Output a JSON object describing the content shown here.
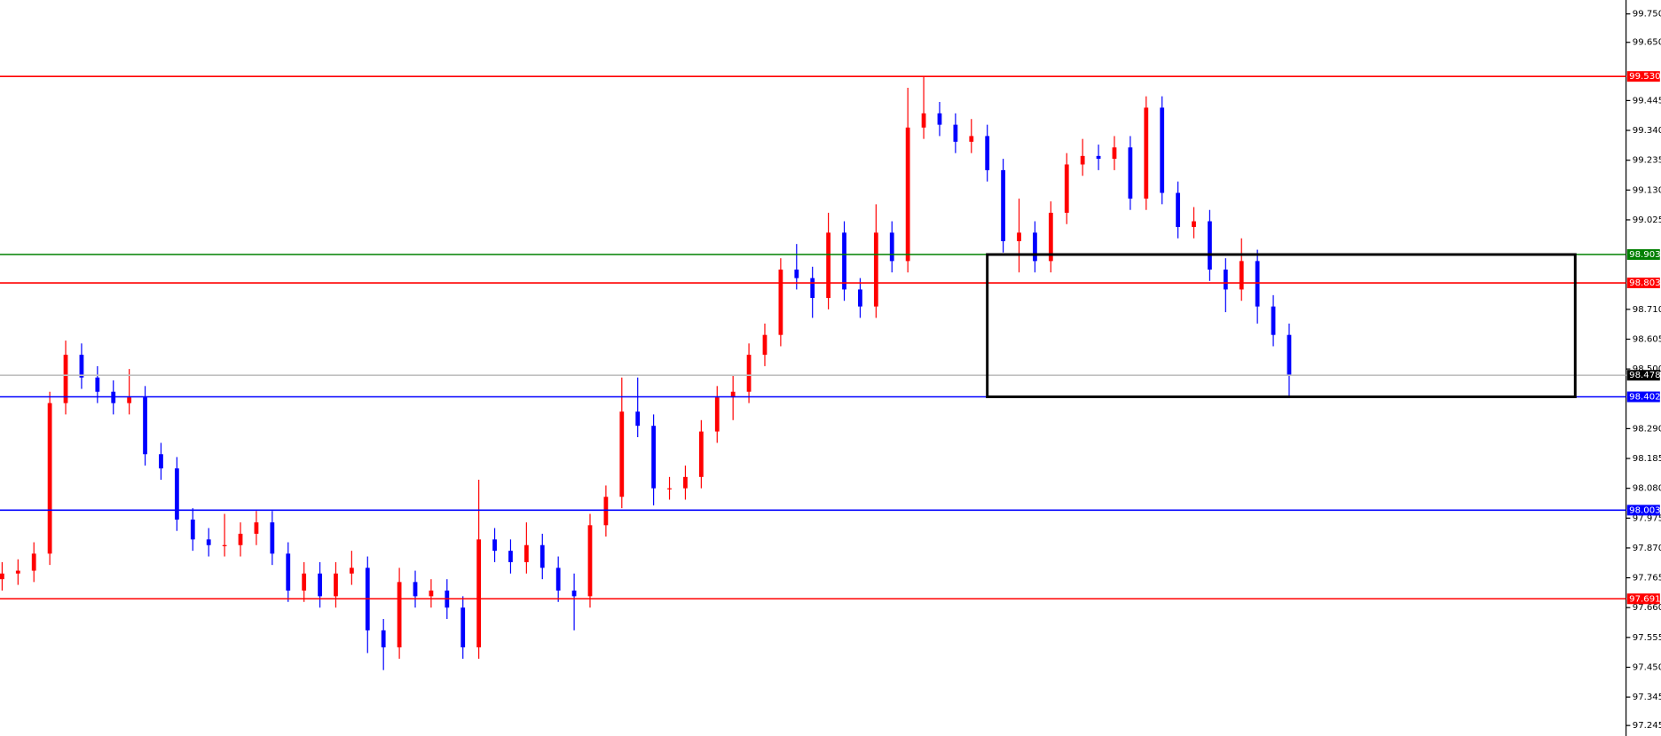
{
  "chart_data": {
    "type": "candlestick",
    "up_color": "#ff0000",
    "down_color": "#0000ff",
    "ylim": [
      97.208,
      99.799
    ],
    "yticks": [
      {
        "value": 99.75,
        "label": "99.750"
      },
      {
        "value": 99.65,
        "label": "99.650"
      },
      99.445,
      {
        "value": 99.34,
        "label": "99.340"
      },
      99.235,
      {
        "value": 99.13,
        "label": "99.130"
      },
      99.025,
      {
        "value": 98.71,
        "label": "98.710"
      },
      98.605,
      {
        "value": 98.5,
        "label": "98.500"
      },
      {
        "value": 98.29,
        "label": "98.290"
      },
      98.185,
      {
        "value": 98.08,
        "label": "98.080"
      },
      97.975,
      {
        "value": 97.87,
        "label": "97.870"
      },
      97.765,
      {
        "value": 97.66,
        "label": "97.660"
      },
      97.555,
      {
        "value": 97.45,
        "label": "97.450"
      },
      97.345,
      97.245
    ],
    "candles": [
      [
        97.76,
        97.82,
        97.72,
        97.78
      ],
      [
        97.78,
        97.83,
        97.74,
        97.79
      ],
      [
        97.79,
        97.89,
        97.75,
        97.85
      ],
      [
        97.85,
        98.42,
        97.81,
        98.38
      ],
      [
        98.38,
        98.6,
        98.34,
        98.55
      ],
      [
        98.55,
        98.59,
        98.43,
        98.47
      ],
      [
        98.47,
        98.51,
        98.38,
        98.42
      ],
      [
        98.42,
        98.46,
        98.34,
        98.38
      ],
      [
        98.38,
        98.5,
        98.34,
        98.4
      ],
      [
        98.4,
        98.44,
        98.16,
        98.2
      ],
      [
        98.2,
        98.24,
        98.11,
        98.15
      ],
      [
        98.15,
        98.19,
        97.93,
        97.97
      ],
      [
        97.97,
        98.01,
        97.86,
        97.9
      ],
      [
        97.9,
        97.94,
        97.84,
        97.88
      ],
      [
        97.88,
        97.99,
        97.84,
        97.88
      ],
      [
        97.88,
        97.96,
        97.84,
        97.92
      ],
      [
        97.92,
        98.0,
        97.88,
        97.96
      ],
      [
        97.96,
        98.0,
        97.81,
        97.85
      ],
      [
        97.85,
        97.89,
        97.68,
        97.72
      ],
      [
        97.72,
        97.82,
        97.68,
        97.78
      ],
      [
        97.78,
        97.82,
        97.66,
        97.7
      ],
      [
        97.7,
        97.82,
        97.66,
        97.78
      ],
      [
        97.78,
        97.86,
        97.74,
        97.8
      ],
      [
        97.8,
        97.84,
        97.5,
        97.58
      ],
      [
        97.58,
        97.62,
        97.44,
        97.52
      ],
      [
        97.52,
        97.8,
        97.48,
        97.75
      ],
      [
        97.75,
        97.79,
        97.66,
        97.7
      ],
      [
        97.7,
        97.76,
        97.66,
        97.72
      ],
      [
        97.72,
        97.76,
        97.62,
        97.66
      ],
      [
        97.66,
        97.7,
        97.48,
        97.52
      ],
      [
        97.52,
        98.11,
        97.48,
        97.9
      ],
      [
        97.9,
        97.94,
        97.82,
        97.86
      ],
      [
        97.86,
        97.9,
        97.78,
        97.82
      ],
      [
        97.82,
        97.96,
        97.78,
        97.88
      ],
      [
        97.88,
        97.92,
        97.76,
        97.8
      ],
      [
        97.8,
        97.84,
        97.68,
        97.72
      ],
      [
        97.72,
        97.78,
        97.58,
        97.7
      ],
      [
        97.7,
        97.99,
        97.66,
        97.95
      ],
      [
        97.95,
        98.09,
        97.91,
        98.05
      ],
      [
        98.05,
        98.47,
        98.01,
        98.35
      ],
      [
        98.35,
        98.47,
        98.26,
        98.3
      ],
      [
        98.3,
        98.34,
        98.02,
        98.08
      ],
      [
        98.08,
        98.12,
        98.04,
        98.08
      ],
      [
        98.08,
        98.16,
        98.04,
        98.12
      ],
      [
        98.12,
        98.32,
        98.08,
        98.28
      ],
      [
        98.28,
        98.44,
        98.24,
        98.4
      ],
      [
        98.4,
        98.48,
        98.32,
        98.42
      ],
      [
        98.42,
        98.59,
        98.38,
        98.55
      ],
      [
        98.55,
        98.66,
        98.51,
        98.62
      ],
      [
        98.62,
        98.89,
        98.58,
        98.85
      ],
      [
        98.85,
        98.94,
        98.78,
        98.82
      ],
      [
        98.82,
        98.86,
        98.68,
        98.75
      ],
      [
        98.75,
        99.05,
        98.71,
        98.98
      ],
      [
        98.98,
        99.02,
        98.74,
        98.78
      ],
      [
        98.78,
        98.82,
        98.68,
        98.72
      ],
      [
        98.72,
        99.08,
        98.68,
        98.98
      ],
      [
        98.98,
        99.02,
        98.84,
        98.88
      ],
      [
        98.88,
        99.49,
        98.84,
        99.35
      ],
      [
        99.35,
        99.53,
        99.31,
        99.4
      ],
      [
        99.4,
        99.44,
        99.32,
        99.36
      ],
      [
        99.36,
        99.4,
        99.26,
        99.3
      ],
      [
        99.3,
        99.38,
        99.26,
        99.32
      ],
      [
        99.32,
        99.36,
        99.16,
        99.2
      ],
      [
        99.2,
        99.24,
        98.91,
        98.95
      ],
      [
        98.95,
        99.1,
        98.84,
        98.98
      ],
      [
        98.98,
        99.02,
        98.84,
        98.88
      ],
      [
        98.88,
        99.09,
        98.84,
        99.05
      ],
      [
        99.05,
        99.26,
        99.01,
        99.22
      ],
      [
        99.22,
        99.31,
        99.18,
        99.25
      ],
      [
        99.25,
        99.29,
        99.2,
        99.24
      ],
      [
        99.24,
        99.32,
        99.2,
        99.28
      ],
      [
        99.28,
        99.32,
        99.06,
        99.1
      ],
      [
        99.1,
        99.46,
        99.06,
        99.42
      ],
      [
        99.42,
        99.46,
        99.08,
        99.12
      ],
      [
        99.12,
        99.16,
        98.96,
        99.0
      ],
      [
        99.0,
        99.07,
        98.96,
        99.02
      ],
      [
        99.02,
        99.06,
        98.81,
        98.85
      ],
      [
        98.85,
        98.89,
        98.7,
        98.78
      ],
      [
        98.78,
        98.96,
        98.74,
        98.88
      ],
      [
        98.88,
        98.92,
        98.66,
        98.72
      ],
      [
        98.72,
        98.76,
        98.58,
        98.62
      ],
      [
        98.62,
        98.66,
        98.4,
        98.478
      ]
    ],
    "levels": [
      {
        "value": 99.53,
        "label": "99.530",
        "color": "#ff0000"
      },
      {
        "value": 98.903,
        "label": "98.903",
        "color": "#008000"
      },
      {
        "value": 98.803,
        "label": "98.803",
        "color": "#ff0000"
      },
      {
        "value": 98.478,
        "label": "98.478",
        "color": "#c0c0c0",
        "label_color": "#000000"
      },
      {
        "value": 98.402,
        "label": "98.402",
        "color": "#0000ff"
      },
      {
        "value": 98.003,
        "label": "98.003",
        "color": "#0000ff"
      },
      {
        "value": 97.691,
        "label": "97.691",
        "color": "#ff0000"
      }
    ],
    "box": {
      "top": 98.903,
      "bottom": 98.402,
      "color": "#000000"
    }
  }
}
